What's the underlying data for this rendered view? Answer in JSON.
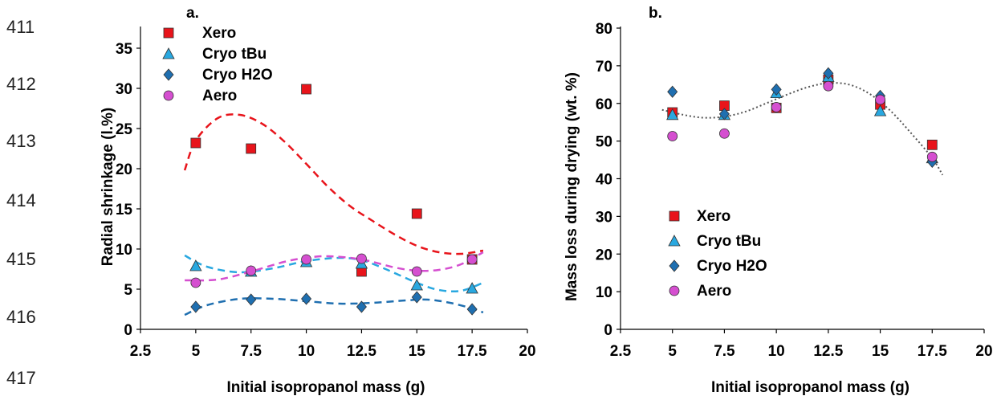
{
  "line_numbers": [
    "411",
    "412",
    "413",
    "414",
    "415",
    "416",
    "417"
  ],
  "colors": {
    "xero": "#e8141b",
    "cryo_tbu": "#29a8e0",
    "cryo_h2o": "#1f6fb0",
    "aero": "#d54fd0",
    "trend_b": "#555555"
  },
  "chart_data": [
    {
      "type": "scatter",
      "panel": "a.",
      "title": "",
      "xlabel": "Initial isopropanol mass (g)",
      "ylabel": "Radial shrinkage (l.%)",
      "xlim": [
        2.5,
        20
      ],
      "ylim": [
        0,
        37.5
      ],
      "xticks": [
        "2.5",
        "5",
        "7.5",
        "10",
        "12.5",
        "15",
        "17.5",
        "20"
      ],
      "yticks": [
        "0",
        "5",
        "10",
        "15",
        "20",
        "25",
        "30",
        "35"
      ],
      "legend_position": "top-left",
      "grid": false,
      "x": [
        5,
        7.5,
        10,
        12.5,
        15,
        17.5
      ],
      "series": [
        {
          "name": "Xero",
          "marker": "square",
          "values": [
            23.2,
            22.5,
            29.9,
            7.2,
            14.4,
            8.7
          ],
          "trend": [
            [
              4.5,
              19.8
            ],
            [
              5,
              23.5
            ],
            [
              6,
              26.3
            ],
            [
              7,
              26.7
            ],
            [
              8,
              25.6
            ],
            [
              9,
              23.4
            ],
            [
              10,
              20.6
            ],
            [
              11,
              17.7
            ],
            [
              12,
              15.3
            ],
            [
              13,
              13.5
            ],
            [
              14,
              11.8
            ],
            [
              15,
              10.4
            ],
            [
              16,
              9.6
            ],
            [
              17,
              9.4
            ],
            [
              18,
              9.8
            ]
          ]
        },
        {
          "name": "Cryo tBu",
          "marker": "triangle",
          "values": [
            7.9,
            7.2,
            8.4,
            8.2,
            5.5,
            5.1
          ],
          "trend": [
            [
              4.5,
              9.2
            ],
            [
              5.5,
              7.8
            ],
            [
              7,
              7.1
            ],
            [
              8.5,
              7.6
            ],
            [
              10,
              8.5
            ],
            [
              11.5,
              8.9
            ],
            [
              12.5,
              8.6
            ],
            [
              13.5,
              7.6
            ],
            [
              15,
              5.8
            ],
            [
              16,
              4.9
            ],
            [
              17,
              4.8
            ],
            [
              18,
              5.8
            ]
          ]
        },
        {
          "name": "Cryo H2O",
          "marker": "diamond",
          "values": [
            2.8,
            3.7,
            3.8,
            2.8,
            4.0,
            2.5
          ],
          "trend": [
            [
              4.5,
              1.8
            ],
            [
              5.5,
              3.0
            ],
            [
              7,
              3.8
            ],
            [
              8.5,
              3.8
            ],
            [
              10,
              3.5
            ],
            [
              11.5,
              3.2
            ],
            [
              13,
              3.3
            ],
            [
              14.5,
              3.6
            ],
            [
              15.5,
              3.7
            ],
            [
              16.5,
              3.3
            ],
            [
              17.5,
              2.6
            ],
            [
              18,
              2.1
            ]
          ]
        },
        {
          "name": "Aero",
          "marker": "circle",
          "values": [
            5.8,
            7.3,
            8.7,
            8.8,
            7.2,
            8.7
          ],
          "trend": [
            [
              4.5,
              6.1
            ],
            [
              6,
              6.2
            ],
            [
              7.5,
              7.2
            ],
            [
              9,
              8.4
            ],
            [
              10,
              8.9
            ],
            [
              11,
              9.1
            ],
            [
              12.5,
              8.7
            ],
            [
              14,
              7.7
            ],
            [
              15,
              7.3
            ],
            [
              16,
              7.4
            ],
            [
              17,
              8.1
            ],
            [
              18,
              9.6
            ]
          ]
        }
      ]
    },
    {
      "type": "scatter",
      "panel": "b.",
      "title": "",
      "xlabel": "Initial isopropanol mass (g)",
      "ylabel": "Mass loss during drying (wt. %)",
      "xlim": [
        2.5,
        20
      ],
      "ylim": [
        0,
        80
      ],
      "xticks": [
        "2.5",
        "5",
        "7.5",
        "10",
        "12.5",
        "15",
        "17.5",
        "20"
      ],
      "yticks": [
        "0",
        "10",
        "20",
        "30",
        "40",
        "50",
        "60",
        "70",
        "80"
      ],
      "legend_position": "bottom-left",
      "grid": false,
      "x": [
        5,
        7.5,
        10,
        12.5,
        15,
        17.5
      ],
      "series": [
        {
          "name": "Xero",
          "marker": "square",
          "values": [
            57.6,
            59.4,
            58.8,
            66.3,
            59.7,
            49.0
          ]
        },
        {
          "name": "Cryo tBu",
          "marker": "triangle",
          "values": [
            57.0,
            57.0,
            62.8,
            67.1,
            58.0,
            45.5
          ]
        },
        {
          "name": "Cryo H2O",
          "marker": "diamond",
          "values": [
            63.1,
            57.2,
            63.7,
            68.0,
            62.0,
            44.5
          ]
        },
        {
          "name": "Aero",
          "marker": "circle",
          "values": [
            51.3,
            52.0,
            59.0,
            64.6,
            61.0,
            45.8
          ]
        }
      ],
      "trend": [
        [
          4.5,
          58.3
        ],
        [
          5.5,
          57.0
        ],
        [
          6.5,
          56.2
        ],
        [
          7.5,
          56.5
        ],
        [
          8.5,
          57.8
        ],
        [
          9.5,
          60.0
        ],
        [
          10.5,
          62.3
        ],
        [
          11.5,
          64.3
        ],
        [
          12.5,
          65.4
        ],
        [
          13.5,
          65.0
        ],
        [
          14.5,
          62.5
        ],
        [
          15.5,
          58.0
        ],
        [
          16.5,
          52.0
        ],
        [
          17.5,
          45.5
        ],
        [
          18,
          41.0
        ]
      ]
    }
  ]
}
